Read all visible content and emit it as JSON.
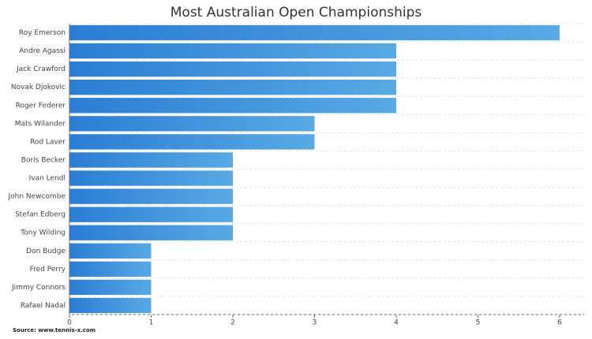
{
  "chart_data": {
    "type": "hbar",
    "title": "Most Australian Open Championships",
    "categories": [
      "Roy Emerson",
      "Andre Agassi",
      "Jack Crawford",
      "Novak Djokovic",
      "Roger Federer",
      "Mats Wilander",
      "Rod Laver",
      "Boris Becker",
      "Ivan Lendl",
      "John Newcombe",
      "Stefan Edberg",
      "Tony Wilding",
      "Don Budge",
      "Fred Perry",
      "Jimmy Connors",
      "Rafael Nadal"
    ],
    "values": [
      6,
      4,
      4,
      4,
      4,
      3,
      3,
      2,
      2,
      2,
      2,
      2,
      1,
      1,
      1,
      1
    ],
    "gradient": [
      "#2a7dd3",
      "#58aae4"
    ],
    "xlim": [
      0,
      6.3
    ],
    "xticks": [
      0,
      1,
      2,
      3,
      4,
      5,
      6
    ],
    "source": "Source: www.tennis-x.com"
  }
}
